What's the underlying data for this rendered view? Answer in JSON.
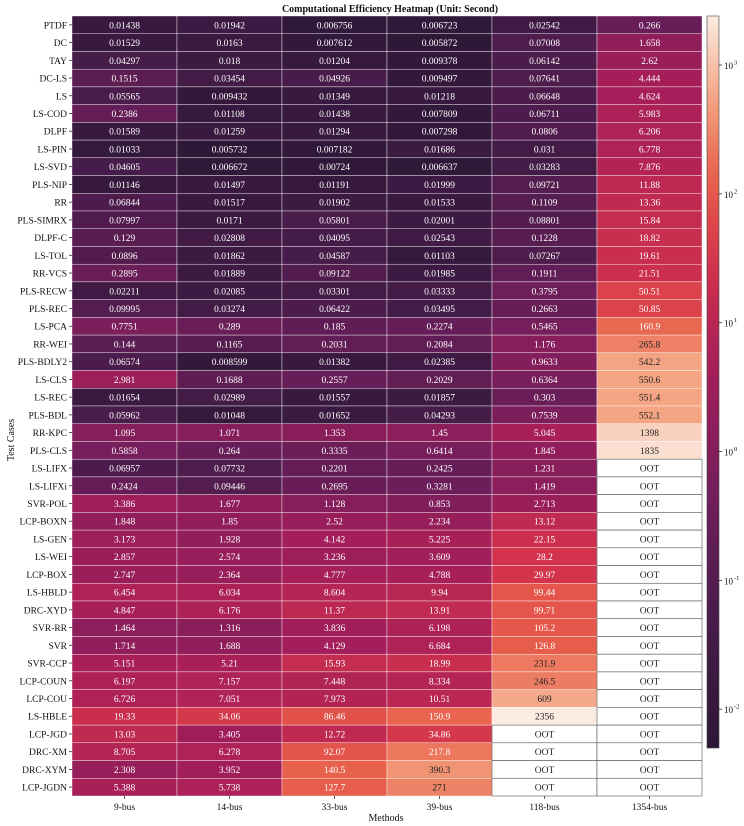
{
  "chart_data": {
    "type": "heatmap",
    "title": "Computational Efficiency Heatmap (Unit: Second)",
    "xlabel": "Methods",
    "ylabel": "Test Cases",
    "columns": [
      "9-bus",
      "14-bus",
      "33-bus",
      "39-bus",
      "118-bus",
      "1354-bus"
    ],
    "rows": [
      {
        "name": "PTDF",
        "values": [
          "0.01438",
          "0.01942",
          "0.006756",
          "0.006723",
          "0.02542",
          "0.266"
        ]
      },
      {
        "name": "DC",
        "values": [
          "0.01529",
          "0.0163",
          "0.007612",
          "0.005872",
          "0.07008",
          "1.658"
        ]
      },
      {
        "name": "TAY",
        "values": [
          "0.04297",
          "0.018",
          "0.01204",
          "0.009378",
          "0.06142",
          "2.62"
        ]
      },
      {
        "name": "DC-LS",
        "values": [
          "0.1515",
          "0.03454",
          "0.04926",
          "0.009497",
          "0.07641",
          "4.444"
        ]
      },
      {
        "name": "LS",
        "values": [
          "0.05565",
          "0.009432",
          "0.01349",
          "0.01218",
          "0.06648",
          "4.624"
        ]
      },
      {
        "name": "LS-COD",
        "values": [
          "0.2386",
          "0.01108",
          "0.01438",
          "0.007809",
          "0.06711",
          "5.983"
        ]
      },
      {
        "name": "DLPF",
        "values": [
          "0.01589",
          "0.01259",
          "0.01294",
          "0.007298",
          "0.0806",
          "6.206"
        ]
      },
      {
        "name": "LS-PIN",
        "values": [
          "0.01033",
          "0.005732",
          "0.007182",
          "0.01686",
          "0.031",
          "6.778"
        ]
      },
      {
        "name": "LS-SVD",
        "values": [
          "0.04605",
          "0.006672",
          "0.00724",
          "0.006637",
          "0.03283",
          "7.876"
        ]
      },
      {
        "name": "PLS-NIP",
        "values": [
          "0.01146",
          "0.01497",
          "0.01191",
          "0.01999",
          "0.09721",
          "11.88"
        ]
      },
      {
        "name": "RR",
        "values": [
          "0.06844",
          "0.01517",
          "0.01902",
          "0.01533",
          "0.1109",
          "13.36"
        ]
      },
      {
        "name": "PLS-SIMRX",
        "values": [
          "0.07997",
          "0.0171",
          "0.05801",
          "0.02001",
          "0.08801",
          "15.84"
        ]
      },
      {
        "name": "DLPF-C",
        "values": [
          "0.129",
          "0.02808",
          "0.04095",
          "0.02543",
          "0.1228",
          "18.82"
        ]
      },
      {
        "name": "LS-TOL",
        "values": [
          "0.0896",
          "0.01862",
          "0.04587",
          "0.01103",
          "0.07267",
          "19.61"
        ]
      },
      {
        "name": "RR-VCS",
        "values": [
          "0.2895",
          "0.01889",
          "0.09122",
          "0.01985",
          "0.1911",
          "21.51"
        ]
      },
      {
        "name": "PLS-RECW",
        "values": [
          "0.02211",
          "0.02085",
          "0.03301",
          "0.03333",
          "0.3795",
          "50.51"
        ]
      },
      {
        "name": "PLS-REC",
        "values": [
          "0.09995",
          "0.03274",
          "0.06422",
          "0.03495",
          "0.2663",
          "50.85"
        ]
      },
      {
        "name": "LS-PCA",
        "values": [
          "0.7751",
          "0.289",
          "0.185",
          "0.2274",
          "0.5465",
          "160.9"
        ]
      },
      {
        "name": "RR-WEI",
        "values": [
          "0.144",
          "0.1165",
          "0.2031",
          "0.2084",
          "1.176",
          "265.8"
        ]
      },
      {
        "name": "PLS-BDLY2",
        "values": [
          "0.06574",
          "0.008599",
          "0.01382",
          "0.02385",
          "0.9633",
          "542.2"
        ]
      },
      {
        "name": "LS-CLS",
        "values": [
          "2.981",
          "0.1688",
          "0.2557",
          "0.2029",
          "0.6364",
          "550.6"
        ]
      },
      {
        "name": "LS-REC",
        "values": [
          "0.01654",
          "0.02989",
          "0.01557",
          "0.01857",
          "0.303",
          "551.4"
        ]
      },
      {
        "name": "PLS-BDL",
        "values": [
          "0.05962",
          "0.01048",
          "0.01652",
          "0.04293",
          "0.7539",
          "552.1"
        ]
      },
      {
        "name": "RR-KPC",
        "values": [
          "1.095",
          "1.071",
          "1.353",
          "1.45",
          "5.045",
          "1398"
        ]
      },
      {
        "name": "PLS-CLS",
        "values": [
          "0.5858",
          "0.264",
          "0.3335",
          "0.6414",
          "1.845",
          "1835"
        ]
      },
      {
        "name": "LS-LIFX",
        "values": [
          "0.06957",
          "0.07732",
          "0.2201",
          "0.2425",
          "1.231",
          "OOT"
        ]
      },
      {
        "name": "LS-LIFXi",
        "values": [
          "0.2424",
          "0.09446",
          "0.2695",
          "0.3281",
          "1.419",
          "OOT"
        ]
      },
      {
        "name": "SVR-POL",
        "values": [
          "3.386",
          "1.677",
          "1.128",
          "0.853",
          "2.713",
          "OOT"
        ]
      },
      {
        "name": "LCP-BOXN",
        "values": [
          "1.848",
          "1.85",
          "2.52",
          "2.234",
          "13.12",
          "OOT"
        ]
      },
      {
        "name": "LS-GEN",
        "values": [
          "3.173",
          "1.928",
          "4.142",
          "5.225",
          "22.15",
          "OOT"
        ]
      },
      {
        "name": "LS-WEI",
        "values": [
          "2.857",
          "2.574",
          "3.236",
          "3.609",
          "28.2",
          "OOT"
        ]
      },
      {
        "name": "LCP-BOX",
        "values": [
          "2.747",
          "2.364",
          "4.777",
          "4.788",
          "29.97",
          "OOT"
        ]
      },
      {
        "name": "LS-HBLD",
        "values": [
          "6.454",
          "6.034",
          "8.604",
          "9.94",
          "99.44",
          "OOT"
        ]
      },
      {
        "name": "DRC-XYD",
        "values": [
          "4.847",
          "6.176",
          "11.37",
          "13.91",
          "99.71",
          "OOT"
        ]
      },
      {
        "name": "SVR-RR",
        "values": [
          "1.464",
          "1.316",
          "3.836",
          "6.198",
          "105.2",
          "OOT"
        ]
      },
      {
        "name": "SVR",
        "values": [
          "1.714",
          "1.688",
          "4.129",
          "6.684",
          "126.8",
          "OOT"
        ]
      },
      {
        "name": "SVR-CCP",
        "values": [
          "5.151",
          "5.21",
          "15.93",
          "18.99",
          "231.9",
          "OOT"
        ]
      },
      {
        "name": "LCP-COUN",
        "values": [
          "6.197",
          "7.157",
          "7.448",
          "8.334",
          "246.5",
          "OOT"
        ]
      },
      {
        "name": "LCP-COU",
        "values": [
          "6.726",
          "7.051",
          "7.973",
          "10.51",
          "609",
          "OOT"
        ]
      },
      {
        "name": "LS-HBLE",
        "values": [
          "19.33",
          "34.06",
          "86.46",
          "150.9",
          "2356",
          "OOT"
        ]
      },
      {
        "name": "LCP-JGD",
        "values": [
          "13.03",
          "3.405",
          "12.72",
          "34.86",
          "OOT",
          "OOT"
        ]
      },
      {
        "name": "DRC-XM",
        "values": [
          "8.705",
          "6.278",
          "92.07",
          "217.8",
          "OOT",
          "OOT"
        ]
      },
      {
        "name": "DRC-XYM",
        "values": [
          "2.308",
          "3.952",
          "140.5",
          "390.3",
          "OOT",
          "OOT"
        ]
      },
      {
        "name": "LCP-JGDN",
        "values": [
          "5.388",
          "5.738",
          "127.7",
          "271",
          "OOT",
          "OOT"
        ]
      }
    ],
    "colorbar": {
      "scale": "log",
      "range": [
        0.005,
        2400
      ],
      "ticks": [
        {
          "value": 0.01,
          "label": "10"
        },
        {
          "value": 0.1,
          "label": "10"
        },
        {
          "value": 1,
          "label": "10"
        },
        {
          "value": 10,
          "label": "10"
        },
        {
          "value": 100,
          "label": "10"
        },
        {
          "value": 1000,
          "label": "10"
        }
      ],
      "tick_exponents": [
        "-2",
        "-1",
        "0",
        "1",
        "2",
        "3"
      ],
      "colormap": "rocket (dark purple to light cream)"
    },
    "missing_label": "OOT",
    "grid": true,
    "colors": {
      "oot_fill": "#ffffff",
      "grid_line": "#ffffff"
    }
  }
}
